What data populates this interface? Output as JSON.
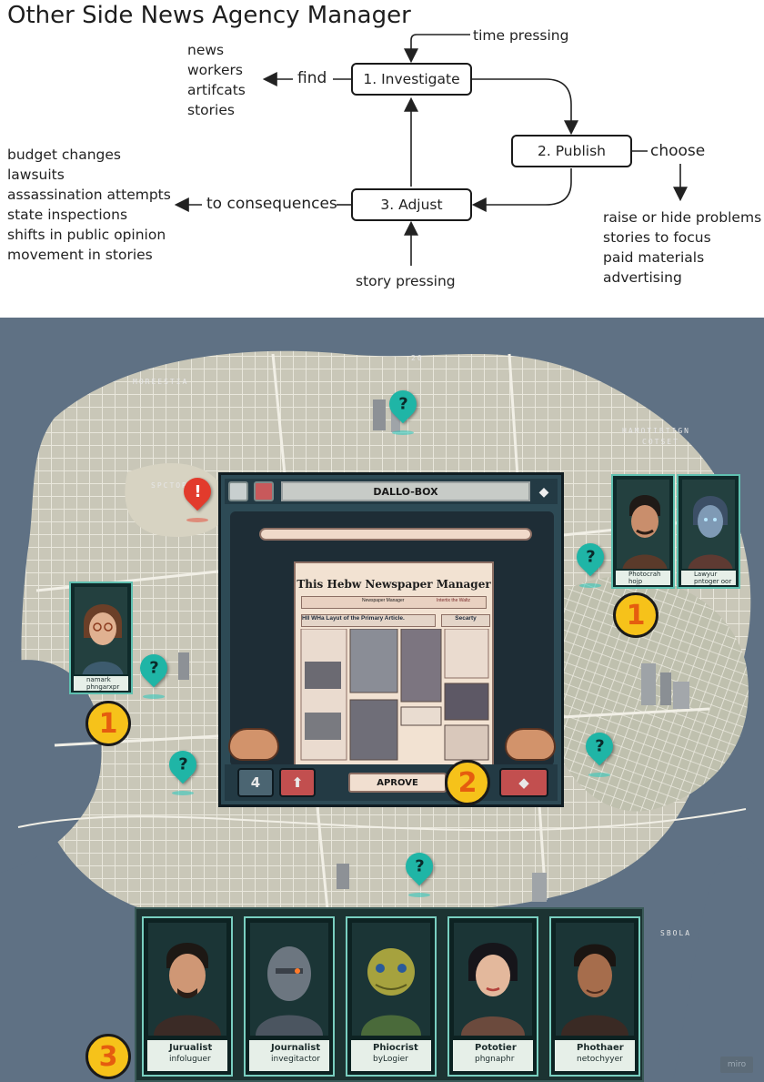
{
  "diagram": {
    "title": "Other Side News Agency Manager",
    "nodes": {
      "investigate": "1. Investigate",
      "publish": "2. Publish",
      "adjust": "3. Adjust"
    },
    "edge_labels": {
      "time_pressing": "time pressing",
      "find": "find",
      "choose": "choose",
      "to_consequences": "to consequences",
      "story_pressing": "story pressing"
    },
    "find_items": [
      "news",
      "workers",
      "artifcats",
      "stories"
    ],
    "choose_items": [
      "raise or hide problems",
      "stories to focus",
      "paid materials",
      "advertising"
    ],
    "consequence_items": [
      "budget changes",
      "lawsuits",
      "assassination attempts",
      "state inspections",
      "shifts in public opinion",
      "movement in stories"
    ]
  },
  "illustration": {
    "map_labels": [
      "MOREESTIA",
      "20",
      "HAMOTIBTIGN",
      "COTSET",
      "SPCTORT",
      "SBOLA"
    ],
    "window": {
      "title": "DALLO-BOX",
      "newspaper_title": "This Hebw Newspaper Manager",
      "header_tabs": [
        "Newspaper Manager",
        "Intertix the Waltz"
      ],
      "article_heading": "HII WHa Layut of the Primary Article.",
      "side_heading": "Secarty",
      "approve_label": "APROVE",
      "left_button": "4"
    },
    "badges": [
      "1",
      "1",
      "2",
      "3"
    ],
    "side_cards": [
      {
        "title": "namark",
        "sub": "phngarxpr"
      },
      {
        "title": "Photocrah",
        "sub": "hojp"
      },
      {
        "title": "Lawyur",
        "sub": "pntoger oor"
      }
    ],
    "roster": [
      {
        "title": "Jurualist",
        "sub": "infoluguer"
      },
      {
        "title": "Journalist",
        "sub": "invegitactor"
      },
      {
        "title": "Phiocrist",
        "sub": "byLogier"
      },
      {
        "title": "Pototier",
        "sub": "phgnaphr"
      },
      {
        "title": "Phothaer",
        "sub": "netochyyer"
      }
    ],
    "watermark": "miro"
  }
}
